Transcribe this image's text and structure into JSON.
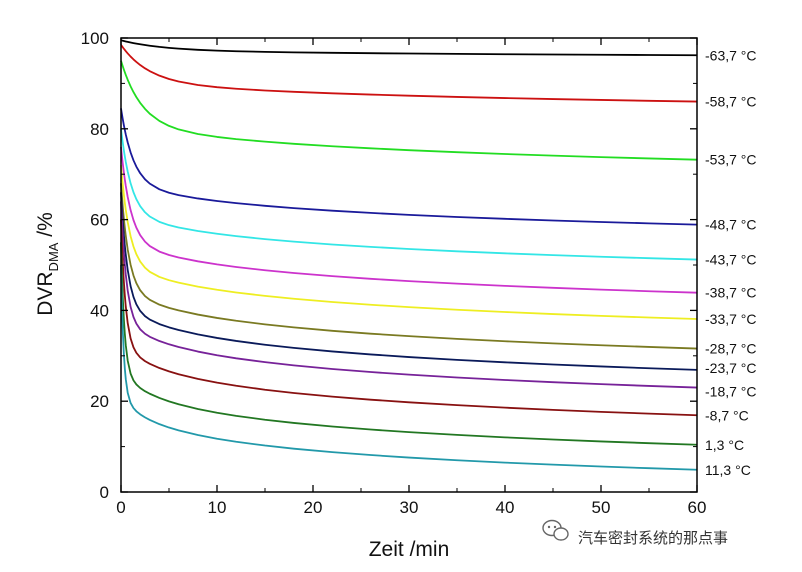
{
  "chart_data": {
    "type": "line",
    "title": "",
    "xlabel": "Zeit /min",
    "ylabel_main": "DVR",
    "ylabel_sub": "DMA",
    "ylabel_unit": " /%",
    "xlim": [
      0,
      60
    ],
    "ylim": [
      0,
      100
    ],
    "x_ticks": [
      "0",
      "10",
      "20",
      "30",
      "40",
      "50",
      "60"
    ],
    "y_ticks": [
      "0",
      "20",
      "40",
      "60",
      "80",
      "100"
    ],
    "grid": false,
    "legend": "labels at right end of each curve",
    "series": [
      {
        "name": "-63,7 °C",
        "color": "#000000",
        "start": 99.5,
        "end": 96.2,
        "tau": 12
      },
      {
        "name": "-58,7 °C",
        "color": "#cc1111",
        "start": 98.5,
        "end": 86.0,
        "tau": 8
      },
      {
        "name": "-53,7 °C",
        "color": "#22dd22",
        "start": 95.0,
        "end": 73.2,
        "tau": 6
      },
      {
        "name": "-48,7 °C",
        "color": "#1a1a9a",
        "start": 84.5,
        "end": 58.9,
        "tau": 3.5
      },
      {
        "name": "-43,7 °C",
        "color": "#33e6e6",
        "start": 80.0,
        "end": 51.2,
        "tau": 3
      },
      {
        "name": "-38,7 °C",
        "color": "#cc33cc",
        "start": 76.0,
        "end": 43.9,
        "tau": 2.8
      },
      {
        "name": "-33,7 °C",
        "color": "#eeee22",
        "start": 72.0,
        "end": 38.1,
        "tau": 2.5
      },
      {
        "name": "-28,7 °C",
        "color": "#7a7a22",
        "start": 68.0,
        "end": 31.6,
        "tau": 2.2
      },
      {
        "name": "-23,7 °C",
        "color": "#0a1a5a",
        "start": 66.0,
        "end": 26.9,
        "tau": 1.9
      },
      {
        "name": "-18,7 °C",
        "color": "#772299",
        "start": 64.0,
        "end": 23.0,
        "tau": 1.6
      },
      {
        "name": "-8,7 °C",
        "color": "#881111",
        "start": 60.0,
        "end": 16.9,
        "tau": 1.3
      },
      {
        "name": "1,3 °C",
        "color": "#227722",
        "start": 55.0,
        "end": 10.4,
        "tau": 1.0
      },
      {
        "name": "11,3 °C",
        "color": "#2299aa",
        "start": 50.0,
        "end": 4.9,
        "tau": 0.8
      }
    ]
  },
  "watermark": {
    "icon": "wechat-icon",
    "text": "汽车密封系统的那点事"
  }
}
